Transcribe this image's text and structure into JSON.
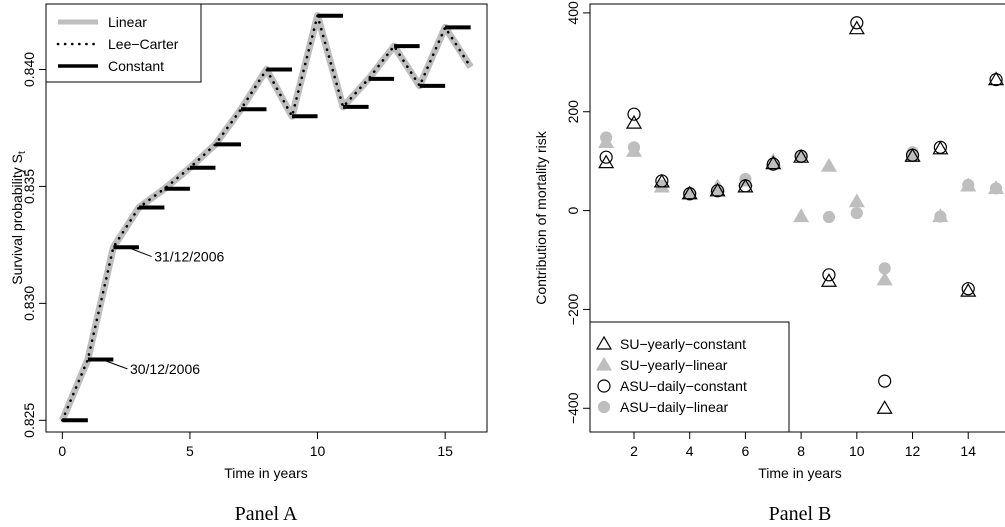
{
  "chart_data": [
    {
      "type": "line",
      "panel_label": "Panel A",
      "xlabel": "Time in years",
      "ylabel": "Survival probability S",
      "ylabel_sub": "t",
      "xlim": [
        -0.64,
        16.64
      ],
      "ylim": [
        0.8245,
        0.8428
      ],
      "xticks": [
        0,
        5,
        10,
        15
      ],
      "yticks": [
        0.825,
        0.83,
        0.835,
        0.84
      ],
      "ytick_labels": [
        "0.825",
        "0.830",
        "0.835",
        "0.840"
      ],
      "series": [
        {
          "name": "Linear",
          "color": "#bebebe",
          "style": "thick-solid",
          "x": [
            0,
            1,
            2,
            3,
            4,
            5,
            6,
            7,
            8,
            9,
            10,
            11,
            12,
            13,
            14,
            15,
            16
          ],
          "y": [
            0.825,
            0.8276,
            0.8324,
            0.8341,
            0.8349,
            0.8358,
            0.8368,
            0.8383,
            0.84,
            0.838,
            0.8423,
            0.8384,
            0.8396,
            0.841,
            0.8393,
            0.8418,
            0.8401
          ]
        },
        {
          "name": "Lee−Carter",
          "color": "#000000",
          "style": "dotted",
          "x": [
            0,
            1,
            2,
            3,
            4,
            5,
            6,
            7,
            8,
            9,
            10,
            11,
            12,
            13,
            14,
            15,
            16
          ],
          "y": [
            0.825,
            0.8276,
            0.8324,
            0.8341,
            0.8349,
            0.8358,
            0.8368,
            0.8383,
            0.84,
            0.838,
            0.8423,
            0.8384,
            0.8396,
            0.841,
            0.8393,
            0.8418,
            0.8401
          ]
        },
        {
          "name": "Constant",
          "color": "#000000",
          "style": "steps",
          "x": [
            0,
            1,
            2,
            3,
            4,
            5,
            6,
            7,
            8,
            9,
            10,
            11,
            12,
            13,
            14,
            15
          ],
          "y": [
            0.825,
            0.8276,
            0.8324,
            0.8341,
            0.8349,
            0.8358,
            0.8368,
            0.8383,
            0.84,
            0.838,
            0.8423,
            0.8384,
            0.8396,
            0.841,
            0.8393,
            0.8418
          ]
        }
      ],
      "legend_position": "top-left",
      "annotations": [
        {
          "text": "30/12/2006",
          "x": 1.5,
          "y": 0.8276
        },
        {
          "text": "31/12/2006",
          "x": 2.5,
          "y": 0.8324
        }
      ]
    },
    {
      "type": "scatter",
      "panel_label": "Panel B",
      "xlabel": "Time in years",
      "ylabel": "Contribution of mortality risk",
      "xlim": [
        0.42,
        15.5
      ],
      "ylim": [
        -448,
        418
      ],
      "xticks": [
        2,
        4,
        6,
        8,
        10,
        12,
        14
      ],
      "yticks": [
        -400,
        -200,
        0,
        200,
        400
      ],
      "ytick_labels": [
        "−400",
        "−200",
        "0",
        "200",
        "400"
      ],
      "series": [
        {
          "name": "SU−yearly−constant",
          "marker": "open-triangle",
          "color": "#000000",
          "x": [
            1,
            2,
            3,
            4,
            5,
            6,
            7,
            8,
            9,
            10,
            11,
            12,
            13,
            14,
            15
          ],
          "y": [
            97,
            177,
            58,
            34,
            40,
            48,
            95,
            108,
            -143,
            368,
            -400,
            110,
            125,
            -163,
            265
          ]
        },
        {
          "name": "SU−yearly−linear",
          "marker": "filled-triangle",
          "color": "#bebebe",
          "x": [
            1,
            2,
            3,
            4,
            5,
            6,
            7,
            8,
            9,
            10,
            11,
            12,
            13,
            14,
            15
          ],
          "y": [
            138,
            120,
            48,
            34,
            48,
            60,
            100,
            -12,
            90,
            18,
            -140,
            112,
            -12,
            50,
            45
          ]
        },
        {
          "name": "ASU−daily−constant",
          "marker": "open-circle",
          "color": "#000000",
          "x": [
            1,
            2,
            3,
            4,
            5,
            6,
            7,
            8,
            9,
            10,
            11,
            12,
            13,
            14,
            15
          ],
          "y": [
            108,
            195,
            60,
            34,
            40,
            50,
            94,
            110,
            -130,
            380,
            -345,
            112,
            128,
            -158,
            265
          ]
        },
        {
          "name": "ASU−daily−linear",
          "marker": "filled-circle",
          "color": "#bebebe",
          "x": [
            1,
            2,
            3,
            4,
            5,
            6,
            7,
            8,
            9,
            10,
            11,
            12,
            13,
            14,
            15
          ],
          "y": [
            148,
            128,
            50,
            35,
            42,
            64,
            94,
            108,
            -13,
            -5,
            -117,
            118,
            -12,
            52,
            45
          ]
        }
      ],
      "legend_position": "bottom-left"
    }
  ]
}
